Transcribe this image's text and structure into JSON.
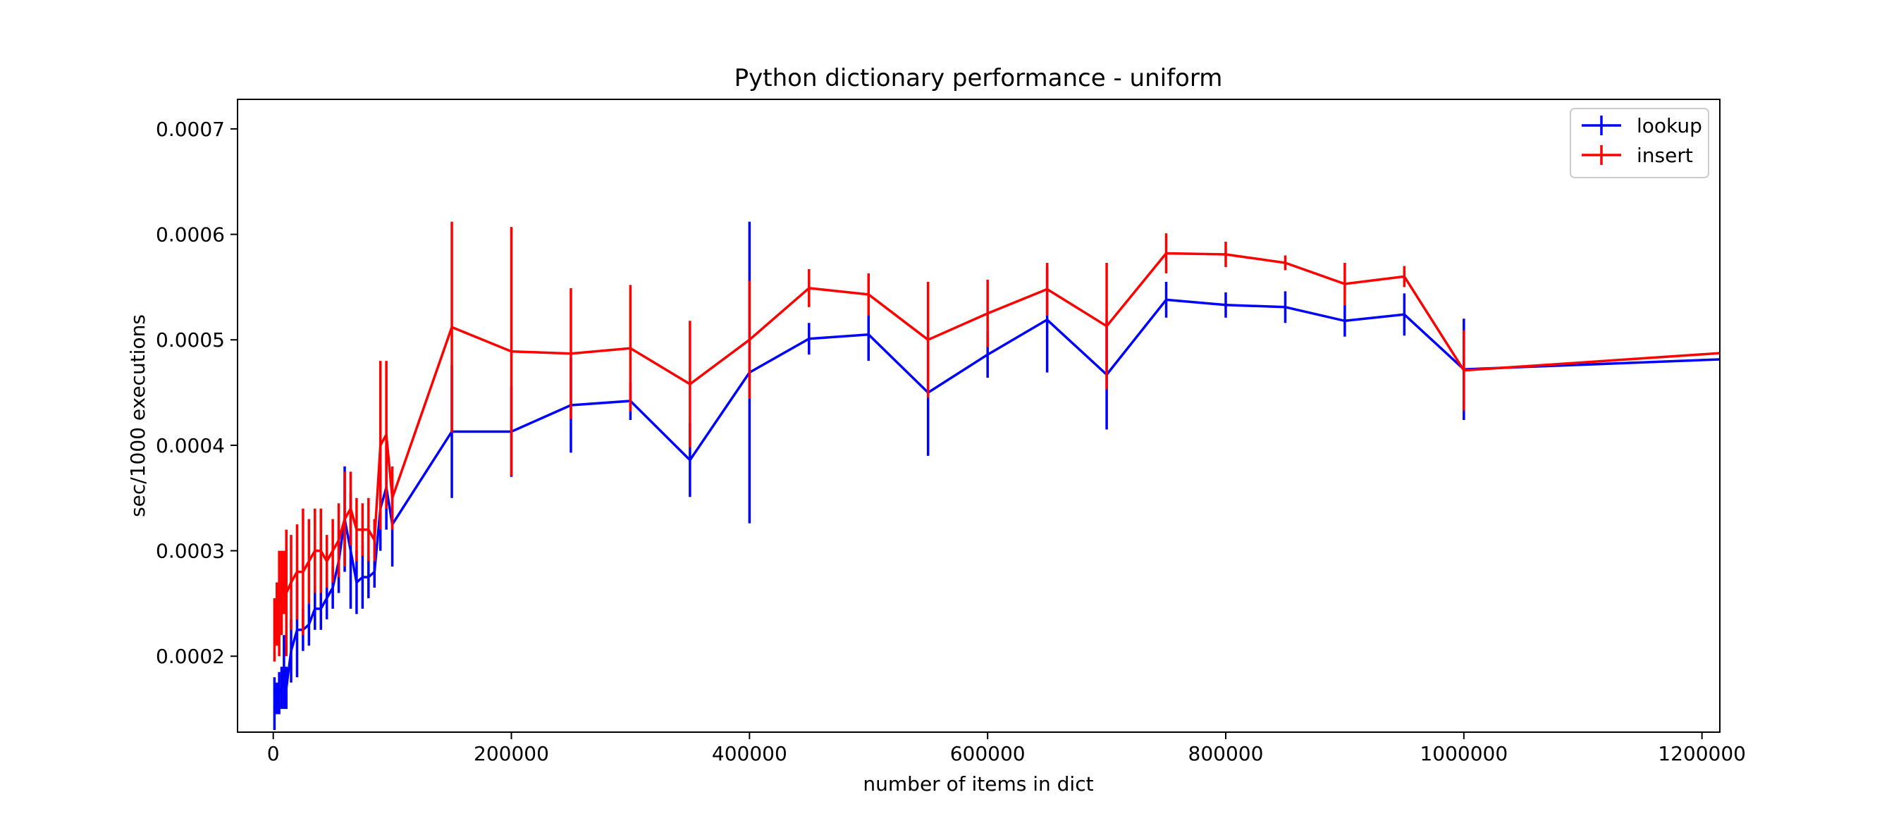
{
  "chart_data": {
    "type": "line",
    "title": "Python dictionary performance - uniform",
    "xlabel": "number of items in dict",
    "ylabel": "sec/1000 executions",
    "xlim": [
      -30000,
      1215000
    ],
    "ylim": [
      0.000128,
      0.000728
    ],
    "x_ticks": [
      0,
      200000,
      400000,
      600000,
      800000,
      1000000,
      1200000
    ],
    "x_tick_labels": [
      "0",
      "200000",
      "400000",
      "600000",
      "800000",
      "1000000",
      "1200000"
    ],
    "y_ticks": [
      0.0002,
      0.0003,
      0.0004,
      0.0005,
      0.0006,
      0.0007
    ],
    "y_tick_labels": [
      "0.0002",
      "0.0003",
      "0.0004",
      "0.0005",
      "0.0006",
      "0.0007"
    ],
    "grid": false,
    "legend_position": "top-right",
    "series": [
      {
        "name": "lookup",
        "color": "#0000ff",
        "x": [
          1000,
          3000,
          5000,
          7000,
          9000,
          11000,
          15000,
          20000,
          25000,
          30000,
          35000,
          40000,
          45000,
          50000,
          55000,
          60000,
          65000,
          70000,
          75000,
          80000,
          85000,
          90000,
          95000,
          100000,
          150000,
          200000,
          250000,
          300000,
          350000,
          400000,
          450000,
          500000,
          550000,
          600000,
          650000,
          700000,
          750000,
          800000,
          850000,
          900000,
          950000,
          1000000,
          1250000
        ],
        "y": [
          0.000155,
          0.00016,
          0.000165,
          0.00017,
          0.000185,
          0.00017,
          0.000205,
          0.000225,
          0.000225,
          0.00023,
          0.000245,
          0.000245,
          0.000255,
          0.000265,
          0.00029,
          0.00033,
          0.0003,
          0.00027,
          0.000275,
          0.000275,
          0.00028,
          0.00034,
          0.00036,
          0.000325,
          0.000413,
          0.000413,
          0.000438,
          0.000442,
          0.000386,
          0.000469,
          0.000501,
          0.000505,
          0.00045,
          0.000486,
          0.000519,
          0.000467,
          0.000538,
          0.000533,
          0.000531,
          0.000518,
          0.000524,
          0.000472,
          0.000483
        ],
        "err": [
          2.5e-05,
          1.5e-05,
          2e-05,
          2e-05,
          3.5e-05,
          2e-05,
          3e-05,
          4.5e-05,
          2e-05,
          2e-05,
          2e-05,
          2e-05,
          2e-05,
          2e-05,
          3e-05,
          5e-05,
          5.5e-05,
          3e-05,
          3e-05,
          2e-05,
          1.5e-05,
          4e-05,
          4e-05,
          4e-05,
          6.3e-05,
          4.3e-05,
          4.5e-05,
          1.8e-05,
          3.5e-05,
          0.000143,
          1.5e-05,
          2.5e-05,
          6e-05,
          2.2e-05,
          5e-05,
          5.2e-05,
          1.7e-05,
          1.2e-05,
          1.5e-05,
          1.5e-05,
          2e-05,
          4.8e-05,
          0.0
        ]
      },
      {
        "name": "insert",
        "color": "#ff0000",
        "x": [
          1000,
          3000,
          5000,
          7000,
          9000,
          11000,
          15000,
          20000,
          25000,
          30000,
          35000,
          40000,
          45000,
          50000,
          55000,
          60000,
          65000,
          70000,
          75000,
          80000,
          85000,
          90000,
          95000,
          100000,
          150000,
          200000,
          250000,
          300000,
          350000,
          400000,
          450000,
          500000,
          550000,
          600000,
          650000,
          700000,
          750000,
          800000,
          850000,
          900000,
          950000,
          1000000,
          1250000
        ],
        "y": [
          0.000225,
          0.00024,
          0.00025,
          0.00026,
          0.00027,
          0.00026,
          0.00027,
          0.00028,
          0.00028,
          0.00029,
          0.0003,
          0.0003,
          0.00029,
          0.0003,
          0.00031,
          0.00033,
          0.00034,
          0.00032,
          0.00032,
          0.00032,
          0.00031,
          0.0004,
          0.00041,
          0.00035,
          0.000512,
          0.000489,
          0.000487,
          0.000492,
          0.000458,
          0.0005,
          0.000549,
          0.000543,
          0.0005,
          0.000525,
          0.000548,
          0.000513,
          0.000582,
          0.000581,
          0.000573,
          0.000553,
          0.00056,
          0.000471,
          0.00049
        ],
        "err": [
          3e-05,
          3e-05,
          5e-05,
          4e-05,
          3e-05,
          6e-05,
          4.5e-05,
          4.5e-05,
          6e-05,
          4e-05,
          4e-05,
          4e-05,
          2.5e-05,
          3e-05,
          3.5e-05,
          4.5e-05,
          3.5e-05,
          3e-05,
          2.5e-05,
          3e-05,
          2e-05,
          8e-05,
          7e-05,
          3e-05,
          0.0001,
          0.000118,
          6.2e-05,
          6e-05,
          6e-05,
          5.6e-05,
          1.8e-05,
          2e-05,
          5.5e-05,
          3.2e-05,
          2.5e-05,
          6e-05,
          1.9e-05,
          1.2e-05,
          7e-06,
          2e-05,
          1e-05,
          3.8e-05,
          0.0
        ]
      }
    ]
  }
}
